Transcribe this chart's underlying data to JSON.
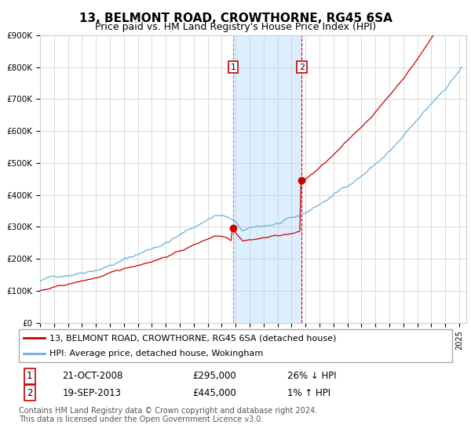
{
  "title": "13, BELMONT ROAD, CROWTHORNE, RG45 6SA",
  "subtitle": "Price paid vs. HM Land Registry's House Price Index (HPI)",
  "ylim": [
    0,
    900000
  ],
  "yticks": [
    0,
    100000,
    200000,
    300000,
    400000,
    500000,
    600000,
    700000,
    800000,
    900000
  ],
  "ytick_labels": [
    "£0",
    "£100K",
    "£200K",
    "£300K",
    "£400K",
    "£500K",
    "£600K",
    "£700K",
    "£800K",
    "£900K"
  ],
  "hpi_color": "#6ab0de",
  "price_color": "#cc0000",
  "marker_color": "#cc0000",
  "vline1_color": "#999999",
  "vline2_color": "#cc0000",
  "shade_color": "#ddeeff",
  "transaction1_date": 2008.81,
  "transaction1_price": 295000,
  "transaction2_date": 2013.72,
  "transaction2_price": 445000,
  "legend_price_label": "13, BELMONT ROAD, CROWTHORNE, RG45 6SA (detached house)",
  "legend_hpi_label": "HPI: Average price, detached house, Wokingham",
  "annotation1_label": "1",
  "annotation2_label": "2",
  "table_row1": [
    "1",
    "21-OCT-2008",
    "£295,000",
    "26% ↓ HPI"
  ],
  "table_row2": [
    "2",
    "19-SEP-2013",
    "£445,000",
    "1% ↑ HPI"
  ],
  "footnote": "Contains HM Land Registry data © Crown copyright and database right 2024.\nThis data is licensed under the Open Government Licence v3.0.",
  "title_fontsize": 11,
  "subtitle_fontsize": 9,
  "tick_fontsize": 7.5,
  "legend_fontsize": 8,
  "table_fontsize": 8.5,
  "footnote_fontsize": 7
}
